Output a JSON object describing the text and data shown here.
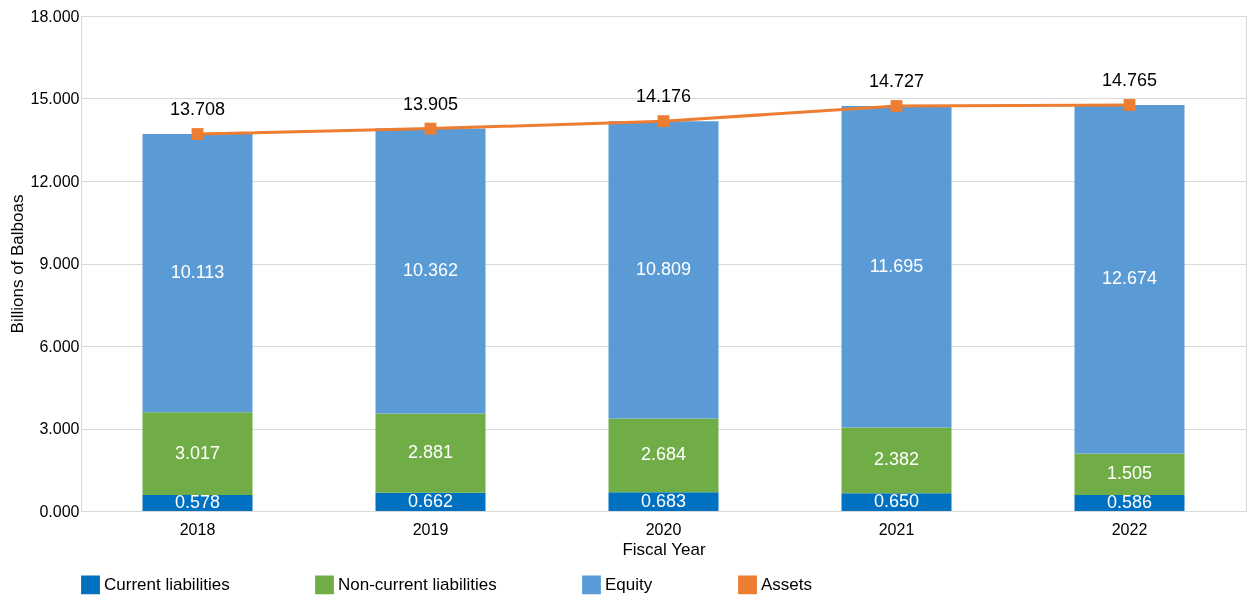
{
  "chart_data": {
    "type": "bar",
    "stacked": true,
    "xlabel": "Fiscal Year",
    "ylabel": "Billions of Balboas",
    "categories": [
      "2018",
      "2019",
      "2020",
      "2021",
      "2022"
    ],
    "ylim": [
      0,
      18
    ],
    "yticks": [
      {
        "value": 0,
        "label": "0.000"
      },
      {
        "value": 3,
        "label": "3.000"
      },
      {
        "value": 6,
        "label": "6.000"
      },
      {
        "value": 9,
        "label": "9.000"
      },
      {
        "value": 12,
        "label": "12.000"
      },
      {
        "value": 15,
        "label": "15.000"
      },
      {
        "value": 18,
        "label": "18.000"
      }
    ],
    "grid": "y",
    "legend": "bottom",
    "series": [
      {
        "name": "Current liabilities",
        "color": "#0070c0",
        "values": [
          0.578,
          0.662,
          0.683,
          0.65,
          0.586
        ],
        "value_labels": [
          "0.578",
          "0.662",
          "0.683",
          "0.650",
          "0.586"
        ]
      },
      {
        "name": "Non-current liabilities",
        "color": "#70ad47",
        "values": [
          3.017,
          2.881,
          2.684,
          2.382,
          1.505
        ],
        "value_labels": [
          "3.017",
          "2.881",
          "2.684",
          "2.382",
          "1.505"
        ]
      },
      {
        "name": "Equity",
        "color": "#5b9bd5",
        "values": [
          10.113,
          10.362,
          10.809,
          11.695,
          12.674
        ],
        "value_labels": [
          "10.113",
          "10.362",
          "10.809",
          "11.695",
          "12.674"
        ]
      },
      {
        "name": "Assets",
        "type": "line",
        "marker": "square",
        "color": "#ed7d31",
        "values": [
          13.708,
          13.905,
          14.176,
          14.727,
          14.765
        ],
        "value_labels": [
          "13.708",
          "13.905",
          "14.176",
          "14.727",
          "14.765"
        ]
      }
    ]
  }
}
